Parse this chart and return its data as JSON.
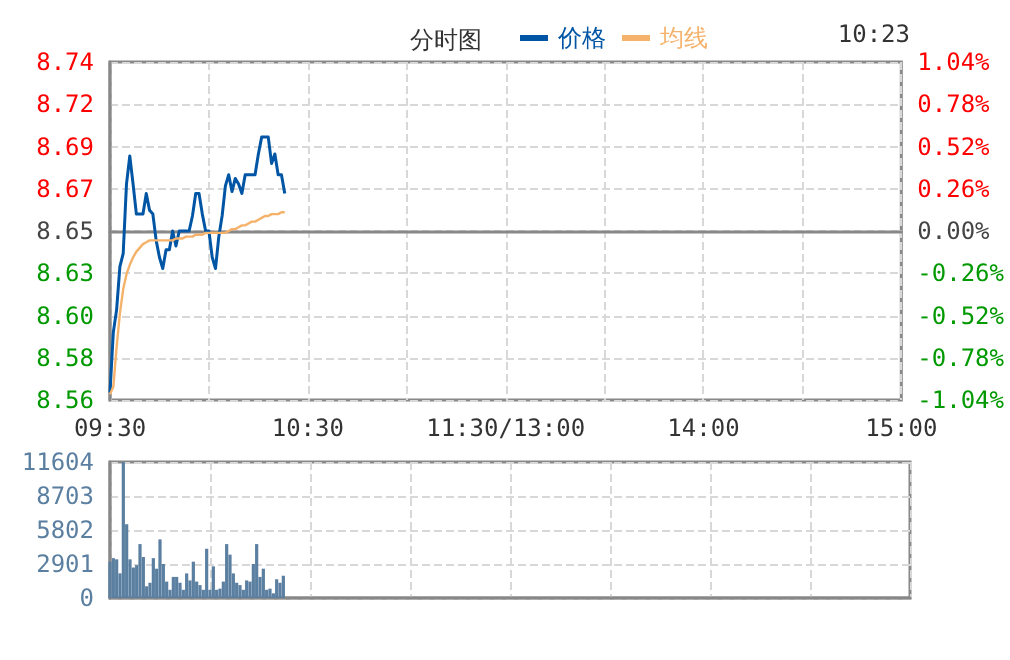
{
  "chart_data": [
    {
      "type": "line",
      "title": "分时图",
      "annotations": [
        "10:23"
      ],
      "legend": "top",
      "grid": true,
      "marker": "none",
      "categories": [
        "09:30",
        null,
        null,
        null,
        null,
        null,
        null,
        null,
        null,
        null,
        null,
        null,
        null,
        null,
        null,
        null,
        null,
        null,
        null,
        null,
        null,
        null,
        null,
        null,
        null,
        null,
        null,
        null,
        null,
        null,
        null,
        null,
        null,
        null,
        null,
        null,
        null,
        null,
        null,
        null,
        null,
        null,
        null,
        null,
        null,
        null,
        null,
        null,
        null,
        null,
        null,
        null,
        null,
        null,
        null,
        null,
        null,
        null,
        null,
        null,
        "10:30",
        null,
        null,
        null,
        null,
        null,
        null,
        null,
        null,
        null,
        null,
        null,
        null,
        null,
        null,
        null,
        null,
        null,
        null,
        null,
        null,
        null,
        null,
        null,
        null,
        null,
        null,
        null,
        null,
        null,
        null,
        null,
        null,
        null,
        null,
        null,
        null,
        null,
        null,
        null,
        null,
        null,
        null,
        null,
        null,
        null,
        null,
        null,
        null,
        null,
        null,
        null,
        null,
        null,
        null,
        null,
        null,
        null,
        null,
        null,
        "11:30/13:00",
        null,
        null,
        null,
        null,
        null,
        null,
        null,
        null,
        null,
        null,
        null,
        null,
        null,
        null,
        null,
        null,
        null,
        null,
        null,
        null,
        null,
        null,
        null,
        null,
        null,
        null,
        null,
        null,
        null,
        null,
        null,
        null,
        null,
        null,
        null,
        null,
        null,
        null,
        null,
        null,
        null,
        null,
        null,
        null,
        null,
        null,
        null,
        null,
        null,
        null,
        null,
        null,
        null,
        null,
        null,
        null,
        null,
        null,
        null,
        "14:00",
        null,
        null,
        null,
        null,
        null,
        null,
        null,
        null,
        null,
        null,
        null,
        null,
        null,
        null,
        null,
        null,
        null,
        null,
        null,
        null,
        null,
        null,
        null,
        null,
        null,
        null,
        null,
        null,
        null,
        null,
        null,
        null,
        null,
        null,
        null,
        null,
        null,
        null,
        null,
        null,
        null,
        null,
        null,
        null,
        null,
        null,
        null,
        null,
        null,
        null,
        null,
        null,
        null,
        null,
        null,
        null,
        null,
        null,
        null,
        "15:00"
      ],
      "ylim": [
        8.56,
        8.74
      ],
      "yticks": [
        {
          "value": 8.56,
          "label": "8.56"
        },
        {
          "value": 8.5825,
          "label": "8.58"
        },
        {
          "value": 8.605,
          "label": "8.60"
        },
        {
          "value": 8.6275,
          "label": "8.63"
        },
        {
          "value": 8.65,
          "label": "8.65"
        },
        {
          "value": 8.6725,
          "label": "8.67"
        },
        {
          "value": 8.695,
          "label": "8.69"
        },
        {
          "value": 8.7175,
          "label": "8.72"
        },
        {
          "value": 8.74,
          "label": "8.74"
        }
      ],
      "y2lim": [
        -1.04,
        1.04
      ],
      "y2ticks": [
        {
          "value": -1.04,
          "label": "-1.04%"
        },
        {
          "value": -0.78,
          "label": "-0.78%"
        },
        {
          "value": -0.52,
          "label": "-0.52%"
        },
        {
          "value": -0.26,
          "label": "-0.26%"
        },
        {
          "value": 0,
          "label": "0.00%"
        },
        {
          "value": 0.26,
          "label": "0.26%"
        },
        {
          "value": 0.52,
          "label": "0.52%"
        },
        {
          "value": 0.78,
          "label": "0.78%"
        },
        {
          "value": 1.04,
          "label": "1.04%"
        }
      ],
      "series": [
        {
          "name": "价格",
          "color": "#0055a5",
          "values": [
            8.564,
            8.596,
            8.608,
            8.631,
            8.638,
            8.675,
            8.69,
            8.675,
            8.659,
            8.659,
            8.659,
            8.67,
            8.661,
            8.659,
            8.645,
            8.636,
            8.63,
            8.64,
            8.64,
            8.65,
            8.642,
            8.65,
            8.65,
            8.65,
            8.65,
            8.658,
            8.67,
            8.67,
            8.659,
            8.65,
            8.65,
            8.636,
            8.63,
            8.647,
            8.658,
            8.674,
            8.68,
            8.671,
            8.678,
            8.675,
            8.67,
            8.68,
            8.68,
            8.68,
            8.68,
            8.691,
            8.7,
            8.7,
            8.7,
            8.686,
            8.691,
            8.68,
            8.68,
            8.67,
            null,
            null,
            null,
            null,
            null,
            null,
            null,
            null,
            null,
            null,
            null,
            null,
            null,
            null,
            null,
            null,
            null,
            null,
            null,
            null,
            null,
            null,
            null,
            null,
            null,
            null,
            null,
            null,
            null,
            null,
            null,
            null,
            null,
            null,
            null,
            null,
            null,
            null,
            null,
            null,
            null,
            null,
            null,
            null,
            null,
            null,
            null,
            null,
            null,
            null,
            null,
            null,
            null,
            null,
            null,
            null,
            null,
            null,
            null,
            null,
            null,
            null,
            null,
            null,
            null,
            null,
            null,
            null,
            null,
            null,
            null,
            null,
            null,
            null,
            null,
            null,
            null,
            null,
            null,
            null,
            null,
            null,
            null,
            null,
            null,
            null,
            null,
            null,
            null,
            null,
            null,
            null,
            null,
            null,
            null,
            null,
            null,
            null,
            null,
            null,
            null,
            null,
            null,
            null,
            null,
            null,
            null,
            null,
            null,
            null,
            null,
            null,
            null,
            null,
            null,
            null,
            null,
            null,
            null,
            null,
            null,
            null,
            null,
            null,
            null,
            null,
            null,
            null,
            null,
            null,
            null,
            null,
            null,
            null,
            null,
            null,
            null,
            null,
            null,
            null,
            null,
            null,
            null,
            null,
            null,
            null,
            null,
            null,
            null,
            null,
            null,
            null,
            null,
            null,
            null,
            null,
            null,
            null,
            null,
            null,
            null,
            null,
            null,
            null,
            null,
            null,
            null,
            null,
            null,
            null,
            null,
            null,
            null,
            null,
            null,
            null,
            null,
            null,
            null,
            null,
            null,
            null,
            null,
            null,
            null,
            null,
            null
          ]
        },
        {
          "name": "均线",
          "color": "#f5b26b",
          "values": [
            8.563,
            8.567,
            8.588,
            8.606,
            8.619,
            8.627,
            8.632,
            8.636,
            8.639,
            8.641,
            8.643,
            8.644,
            8.645,
            8.645,
            8.645,
            8.645,
            8.645,
            8.645,
            8.645,
            8.645,
            8.646,
            8.646,
            8.646,
            8.647,
            8.647,
            8.647,
            8.648,
            8.648,
            8.648,
            8.649,
            8.649,
            8.649,
            8.649,
            8.649,
            8.649,
            8.649,
            8.65,
            8.651,
            8.651,
            8.652,
            8.653,
            8.653,
            8.654,
            8.655,
            8.655,
            8.656,
            8.657,
            8.658,
            8.658,
            8.659,
            8.659,
            8.659,
            8.66,
            8.66,
            null,
            null,
            null,
            null,
            null,
            null,
            null,
            null,
            null,
            null,
            null,
            null,
            null,
            null,
            null,
            null,
            null,
            null,
            null,
            null,
            null,
            null,
            null,
            null,
            null,
            null,
            null,
            null,
            null,
            null,
            null,
            null,
            null,
            null,
            null,
            null,
            null,
            null,
            null,
            null,
            null,
            null,
            null,
            null,
            null,
            null,
            null,
            null,
            null,
            null,
            null,
            null,
            null,
            null,
            null,
            null,
            null,
            null,
            null,
            null,
            null,
            null,
            null,
            null,
            null,
            null,
            null,
            null,
            null,
            null,
            null,
            null,
            null,
            null,
            null,
            null,
            null,
            null,
            null,
            null,
            null,
            null,
            null,
            null,
            null,
            null,
            null,
            null,
            null,
            null,
            null,
            null,
            null,
            null,
            null,
            null,
            null,
            null,
            null,
            null,
            null,
            null,
            null,
            null,
            null,
            null,
            null,
            null,
            null,
            null,
            null,
            null,
            null,
            null,
            null,
            null,
            null,
            null,
            null,
            null,
            null,
            null,
            null,
            null,
            null,
            null,
            null,
            null,
            null,
            null,
            null,
            null,
            null,
            null,
            null,
            null,
            null,
            null,
            null,
            null,
            null,
            null,
            null,
            null,
            null,
            null,
            null,
            null,
            null,
            null,
            null,
            null,
            null,
            null,
            null,
            null,
            null,
            null,
            null,
            null,
            null,
            null,
            null,
            null,
            null,
            null,
            null,
            null,
            null,
            null,
            null,
            null,
            null,
            null,
            null,
            null,
            null,
            null,
            null,
            null,
            null,
            null,
            null,
            null,
            null,
            null,
            null
          ]
        }
      ]
    },
    {
      "type": "bar",
      "tick_labels": "y",
      "grid": true,
      "color": "#5b7fa0",
      "categories": [
        null,
        null,
        null,
        null,
        null,
        null,
        null,
        null,
        null,
        null,
        null,
        null,
        null,
        null,
        null,
        null,
        null,
        null,
        null,
        null,
        null,
        null,
        null,
        null,
        null,
        null,
        null,
        null,
        null,
        null,
        null,
        null,
        null,
        null,
        null,
        null,
        null,
        null,
        null,
        null,
        null,
        null,
        null,
        null,
        null,
        null,
        null,
        null,
        null,
        null,
        null,
        null,
        null,
        null,
        null,
        null,
        null,
        null,
        null,
        null,
        null,
        null,
        null,
        null,
        null,
        null,
        null,
        null,
        null,
        null,
        null,
        null,
        null,
        null,
        null,
        null,
        null,
        null,
        null,
        null,
        null,
        null,
        null,
        null,
        null,
        null,
        null,
        null,
        null,
        null,
        null,
        null,
        null,
        null,
        null,
        null,
        null,
        null,
        null,
        null,
        null,
        null,
        null,
        null,
        null,
        null,
        null,
        null,
        null,
        null,
        null,
        null,
        null,
        null,
        null,
        null,
        null,
        null,
        null,
        null,
        null,
        null,
        null,
        null,
        null,
        null,
        null,
        null,
        null,
        null,
        null,
        null,
        null,
        null,
        null,
        null,
        null,
        null,
        null,
        null,
        null,
        null,
        null,
        null,
        null,
        null,
        null,
        null,
        null,
        null,
        null,
        null,
        null,
        null,
        null,
        null,
        null,
        null,
        null,
        null,
        null,
        null,
        null,
        null,
        null,
        null,
        null,
        null,
        null,
        null,
        null,
        null,
        null,
        null,
        null,
        null,
        null,
        null,
        null,
        null,
        null,
        null,
        null,
        null,
        null,
        null,
        null,
        null,
        null,
        null,
        null,
        null,
        null,
        null,
        null,
        null,
        null,
        null,
        null,
        null,
        null,
        null,
        null,
        null,
        null,
        null,
        null,
        null,
        null,
        null,
        null,
        null,
        null,
        null,
        null,
        null,
        null,
        null,
        null,
        null,
        null,
        null,
        null,
        null,
        null,
        null,
        null,
        null,
        null,
        null,
        null,
        null,
        null,
        null,
        null,
        null,
        null,
        null,
        null,
        null,
        null
      ],
      "ylim": [
        0,
        11604
      ],
      "yticks": [
        0,
        2901,
        5802,
        8703,
        11604
      ],
      "values": [
        3100,
        3400,
        3300,
        2100,
        11600,
        6300,
        3300,
        2600,
        2800,
        4600,
        3500,
        1000,
        1300,
        3400,
        2500,
        5000,
        2900,
        1400,
        700,
        1800,
        1800,
        1300,
        700,
        2100,
        1500,
        3100,
        1400,
        1100,
        700,
        4200,
        700,
        2700,
        700,
        800,
        1400,
        4600,
        3700,
        2100,
        1300,
        1100,
        700,
        1500,
        1400,
        2900,
        4600,
        1800,
        2500,
        700,
        800,
        400,
        1600,
        1300,
        1900,
        null,
        null,
        null,
        null,
        null,
        null,
        null,
        null,
        null,
        null,
        null,
        null,
        null,
        null,
        null,
        null,
        null,
        null,
        null,
        null,
        null,
        null,
        null,
        null,
        null,
        null,
        null,
        null,
        null,
        null,
        null,
        null,
        null,
        null,
        null,
        null,
        null,
        null,
        null,
        null,
        null,
        null,
        null,
        null,
        null,
        null,
        null,
        null,
        null,
        null,
        null,
        null,
        null,
        null,
        null,
        null,
        null,
        null,
        null,
        null,
        null,
        null,
        null,
        null,
        null,
        null,
        null,
        null,
        null,
        null,
        null,
        null,
        null,
        null,
        null,
        null,
        null,
        null,
        null,
        null,
        null,
        null,
        null,
        null,
        null,
        null,
        null,
        null,
        null,
        null,
        null,
        null,
        null,
        null,
        null,
        null,
        null,
        null,
        null,
        null,
        null,
        null,
        null,
        null,
        null,
        null,
        null,
        null,
        null,
        null,
        null,
        null,
        null,
        null,
        null,
        null,
        null,
        null,
        null,
        null,
        null,
        null,
        null,
        null,
        null,
        null,
        null,
        null,
        null,
        null,
        null,
        null,
        null,
        null,
        null,
        null,
        null,
        null,
        null,
        null,
        null,
        null,
        null,
        null,
        null,
        null,
        null,
        null,
        null,
        null,
        null,
        null,
        null,
        null,
        null,
        null,
        null,
        null,
        null,
        null,
        null,
        null,
        null,
        null,
        null,
        null,
        null,
        null,
        null,
        null,
        null,
        null,
        null,
        null,
        null,
        null,
        null,
        null,
        null,
        null,
        null,
        null,
        null,
        null,
        null,
        null,
        null,
        null
      ]
    }
  ]
}
